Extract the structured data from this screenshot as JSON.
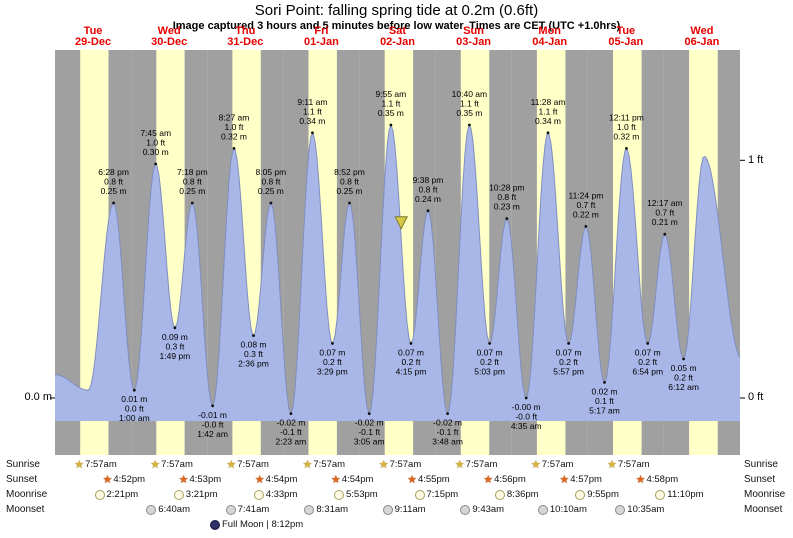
{
  "title": "Sori Point: falling  spring tide at 0.2m (0.6ft)",
  "subtitle": "Image captured 3 hours and 5 minutes before low water. Times are CET (UTC +1.0hrs)",
  "axis": {
    "left_zero_m": "0.0 m",
    "right_one_ft": "1 ft",
    "right_zero_ft": "0 ft"
  },
  "chart_data": {
    "type": "area",
    "title": "Sori Point tide height over 9 days",
    "xlabel": "Day",
    "ylabel_left": "m",
    "ylabel_right": "ft",
    "ylim_m": [
      -0.05,
      0.45
    ],
    "x_range": [
      "29-Dec 00:00",
      "07-Jan 00:00"
    ],
    "days": [
      {
        "name": "Tue",
        "date": "29-Dec",
        "sunrise_h": 7.95,
        "sunset_h": 16.87
      },
      {
        "name": "Wed",
        "date": "30-Dec",
        "sunrise_h": 7.95,
        "sunset_h": 16.88
      },
      {
        "name": "Thu",
        "date": "31-Dec",
        "sunrise_h": 7.95,
        "sunset_h": 16.9
      },
      {
        "name": "Fri",
        "date": "01-Jan",
        "sunrise_h": 7.95,
        "sunset_h": 16.9
      },
      {
        "name": "Sat",
        "date": "02-Jan",
        "sunrise_h": 7.95,
        "sunset_h": 16.92
      },
      {
        "name": "Sun",
        "date": "03-Jan",
        "sunrise_h": 7.95,
        "sunset_h": 16.93
      },
      {
        "name": "Mon",
        "date": "04-Jan",
        "sunrise_h": 7.95,
        "sunset_h": 16.95
      },
      {
        "name": "Tue",
        "date": "05-Jan",
        "sunrise_h": 7.95,
        "sunset_h": 16.97
      },
      {
        "name": "Wed",
        "date": "06-Jan",
        "sunrise_h": 7.95,
        "sunset_h": 16.98
      }
    ],
    "tides": [
      {
        "day": 0,
        "hour": 0.0,
        "height_m": 0.03,
        "show": false,
        "kind": "edge"
      },
      {
        "day": 0,
        "hour": 10.5,
        "height_m": 0.01,
        "show": false,
        "kind": "low"
      },
      {
        "day": 0,
        "hour": 18.47,
        "height_m": 0.25,
        "show": true,
        "kind": "high",
        "time": "6:28 pm",
        "ft": "0.8 ft",
        "m": "0.25 m"
      },
      {
        "day": 1,
        "hour": 1.0,
        "height_m": 0.01,
        "show": true,
        "kind": "low",
        "time": "1:00 am",
        "ft": "0.0 ft",
        "m": "0.01 m"
      },
      {
        "day": 1,
        "hour": 7.75,
        "height_m": 0.3,
        "show": true,
        "kind": "high",
        "time": "7:45 am",
        "ft": "1.0 ft",
        "m": "0.30 m"
      },
      {
        "day": 1,
        "hour": 13.82,
        "height_m": 0.09,
        "show": true,
        "kind": "low",
        "time": "1:49 pm",
        "ft": "0.3 ft",
        "m": "0.09 m"
      },
      {
        "day": 1,
        "hour": 19.3,
        "height_m": 0.25,
        "show": true,
        "kind": "high",
        "time": "7:18 pm",
        "ft": "0.8 ft",
        "m": "0.25 m"
      },
      {
        "day": 2,
        "hour": 1.7,
        "height_m": -0.01,
        "show": true,
        "kind": "low",
        "time": "1:42 am",
        "ft": "-0.0 ft",
        "m": "-0.01 m"
      },
      {
        "day": 2,
        "hour": 8.45,
        "height_m": 0.32,
        "show": true,
        "kind": "high",
        "time": "8:27 am",
        "ft": "1.0 ft",
        "m": "0.32 m"
      },
      {
        "day": 2,
        "hour": 14.6,
        "height_m": 0.08,
        "show": true,
        "kind": "low",
        "time": "2:36 pm",
        "ft": "0.3 ft",
        "m": "0.08 m"
      },
      {
        "day": 2,
        "hour": 20.08,
        "height_m": 0.25,
        "show": true,
        "kind": "high",
        "time": "8:05 pm",
        "ft": "0.8 ft",
        "m": "0.25 m"
      },
      {
        "day": 3,
        "hour": 2.38,
        "height_m": -0.02,
        "show": true,
        "kind": "low",
        "time": "2:23 am",
        "ft": "-0.1 ft",
        "m": "-0.02 m"
      },
      {
        "day": 3,
        "hour": 9.18,
        "height_m": 0.34,
        "show": true,
        "kind": "high",
        "time": "9:11 am",
        "ft": "1.1 ft",
        "m": "0.34 m"
      },
      {
        "day": 3,
        "hour": 15.48,
        "height_m": 0.07,
        "show": true,
        "kind": "low",
        "time": "3:29 pm",
        "ft": "0.2 ft",
        "m": "0.07 m"
      },
      {
        "day": 3,
        "hour": 20.87,
        "height_m": 0.25,
        "show": true,
        "kind": "high",
        "time": "8:52 pm",
        "ft": "0.8 ft",
        "m": "0.25 m"
      },
      {
        "day": 4,
        "hour": 3.08,
        "height_m": -0.02,
        "show": true,
        "kind": "low",
        "time": "3:05 am",
        "ft": "-0.1 ft",
        "m": "-0.02 m"
      },
      {
        "day": 4,
        "hour": 9.92,
        "height_m": 0.35,
        "show": true,
        "kind": "high",
        "time": "9:55 am",
        "ft": "1.1 ft",
        "m": "0.35 m"
      },
      {
        "day": 4,
        "hour": 16.25,
        "height_m": 0.07,
        "show": true,
        "kind": "low",
        "time": "4:15 pm",
        "ft": "0.2 ft",
        "m": "0.07 m"
      },
      {
        "day": 4,
        "hour": 21.63,
        "height_m": 0.24,
        "show": true,
        "kind": "high",
        "time": "9:38 pm",
        "ft": "0.8 ft",
        "m": "0.24 m"
      },
      {
        "day": 5,
        "hour": 3.8,
        "height_m": -0.02,
        "show": true,
        "kind": "low",
        "time": "3:48 am",
        "ft": "-0.1 ft",
        "m": "-0.02 m"
      },
      {
        "day": 5,
        "hour": 10.67,
        "height_m": 0.35,
        "show": true,
        "kind": "high",
        "time": "10:40 am",
        "ft": "1.1 ft",
        "m": "0.35 m"
      },
      {
        "day": 5,
        "hour": 17.05,
        "height_m": 0.07,
        "show": true,
        "kind": "low",
        "time": "5:03 pm",
        "ft": "0.2 ft",
        "m": "0.07 m"
      },
      {
        "day": 5,
        "hour": 22.47,
        "height_m": 0.23,
        "show": true,
        "kind": "high",
        "time": "10:28 pm",
        "ft": "0.8 ft",
        "m": "0.23 m"
      },
      {
        "day": 6,
        "hour": 4.58,
        "height_m": 0.0,
        "show": true,
        "kind": "low",
        "time": "4:35 am",
        "ft": "-0.0 ft",
        "m": "-0.00 m"
      },
      {
        "day": 6,
        "hour": 11.47,
        "height_m": 0.34,
        "show": true,
        "kind": "high",
        "time": "11:28 am",
        "ft": "1.1 ft",
        "m": "0.34 m"
      },
      {
        "day": 6,
        "hour": 17.95,
        "height_m": 0.07,
        "show": true,
        "kind": "low",
        "time": "5:57 pm",
        "ft": "0.2 ft",
        "m": "0.07 m"
      },
      {
        "day": 6,
        "hour": 23.4,
        "height_m": 0.22,
        "show": true,
        "kind": "high",
        "time": "11:24 pm",
        "ft": "0.7 ft",
        "m": "0.22 m"
      },
      {
        "day": 7,
        "hour": 5.28,
        "height_m": 0.02,
        "show": true,
        "kind": "low",
        "time": "5:17 am",
        "ft": "0.1 ft",
        "m": "0.02 m"
      },
      {
        "day": 7,
        "hour": 12.18,
        "height_m": 0.32,
        "show": true,
        "kind": "high",
        "time": "12:11 pm",
        "ft": "1.0 ft",
        "m": "0.32 m"
      },
      {
        "day": 7,
        "hour": 18.9,
        "height_m": 0.07,
        "show": true,
        "kind": "low",
        "time": "6:54 pm",
        "ft": "0.2 ft",
        "m": "0.07 m"
      },
      {
        "day": 8,
        "hour": 0.28,
        "height_m": 0.21,
        "show": true,
        "kind": "high",
        "time": "12:17 am",
        "ft": "0.7 ft",
        "m": "0.21 m"
      },
      {
        "day": 8,
        "hour": 6.2,
        "height_m": 0.05,
        "show": true,
        "kind": "low",
        "time": "6:12 am",
        "ft": "0.2 ft",
        "m": "0.05 m"
      },
      {
        "day": 8,
        "hour": 12.67,
        "height_m": 0.31,
        "show": false,
        "kind": "high"
      },
      {
        "day": 8,
        "hour": 24.6,
        "height_m": 0.05,
        "show": false,
        "kind": "low"
      }
    ],
    "marker": {
      "day": 4,
      "hour": 13.17,
      "name": "current-time"
    },
    "colors": {
      "night": "#a0a0a0",
      "day": "#ffffc8",
      "tide_fill": "#a9b7e8",
      "tide_edge": "#7f8fc0",
      "day_label": "#e60000",
      "marker_fill": "#d6c644",
      "marker_edge": "#7a7a30"
    }
  },
  "almanac": {
    "row_labels": [
      "Sunrise",
      "Sunset",
      "Moonrise",
      "Moonset"
    ],
    "sunrise": {
      "entries": [
        {
          "day": 0,
          "hour": 7.95,
          "time": "7:57am"
        },
        {
          "day": 1,
          "hour": 7.95,
          "time": "7:57am"
        },
        {
          "day": 2,
          "hour": 7.95,
          "time": "7:57am"
        },
        {
          "day": 3,
          "hour": 7.95,
          "time": "7:57am"
        },
        {
          "day": 4,
          "hour": 7.95,
          "time": "7:57am"
        },
        {
          "day": 5,
          "hour": 7.95,
          "time": "7:57am"
        },
        {
          "day": 6,
          "hour": 7.95,
          "time": "7:57am"
        },
        {
          "day": 7,
          "hour": 7.95,
          "time": "7:57am"
        }
      ]
    },
    "sunset": {
      "entries": [
        {
          "day": 0,
          "hour": 16.87,
          "time": "4:52pm"
        },
        {
          "day": 1,
          "hour": 16.88,
          "time": "4:53pm"
        },
        {
          "day": 2,
          "hour": 16.9,
          "time": "4:54pm"
        },
        {
          "day": 3,
          "hour": 16.9,
          "time": "4:54pm"
        },
        {
          "day": 4,
          "hour": 16.92,
          "time": "4:55pm"
        },
        {
          "day": 5,
          "hour": 16.93,
          "time": "4:56pm"
        },
        {
          "day": 6,
          "hour": 16.95,
          "time": "4:57pm"
        },
        {
          "day": 7,
          "hour": 16.97,
          "time": "4:58pm"
        }
      ]
    },
    "moonrise": {
      "entries": [
        {
          "day": 0,
          "hour": 14.35,
          "time": "2:21pm"
        },
        {
          "day": 1,
          "hour": 15.35,
          "time": "3:21pm"
        },
        {
          "day": 2,
          "hour": 16.55,
          "time": "4:33pm"
        },
        {
          "day": 3,
          "hour": 17.88,
          "time": "5:53pm"
        },
        {
          "day": 4,
          "hour": 19.25,
          "time": "7:15pm"
        },
        {
          "day": 5,
          "hour": 20.6,
          "time": "8:36pm"
        },
        {
          "day": 6,
          "hour": 21.92,
          "time": "9:55pm"
        },
        {
          "day": 7,
          "hour": 23.17,
          "time": "11:10pm"
        }
      ]
    },
    "moonset": {
      "entries": [
        {
          "day": 1,
          "hour": 6.67,
          "time": "6:40am"
        },
        {
          "day": 2,
          "hour": 7.68,
          "time": "7:41am"
        },
        {
          "day": 3,
          "hour": 8.52,
          "time": "8:31am"
        },
        {
          "day": 4,
          "hour": 9.18,
          "time": "9:11am"
        },
        {
          "day": 5,
          "hour": 9.72,
          "time": "9:43am"
        },
        {
          "day": 6,
          "hour": 10.17,
          "time": "10:10am"
        },
        {
          "day": 7,
          "hour": 10.58,
          "time": "10:35am"
        }
      ]
    },
    "full_moon_text": "Full Moon | 8:12pm"
  }
}
